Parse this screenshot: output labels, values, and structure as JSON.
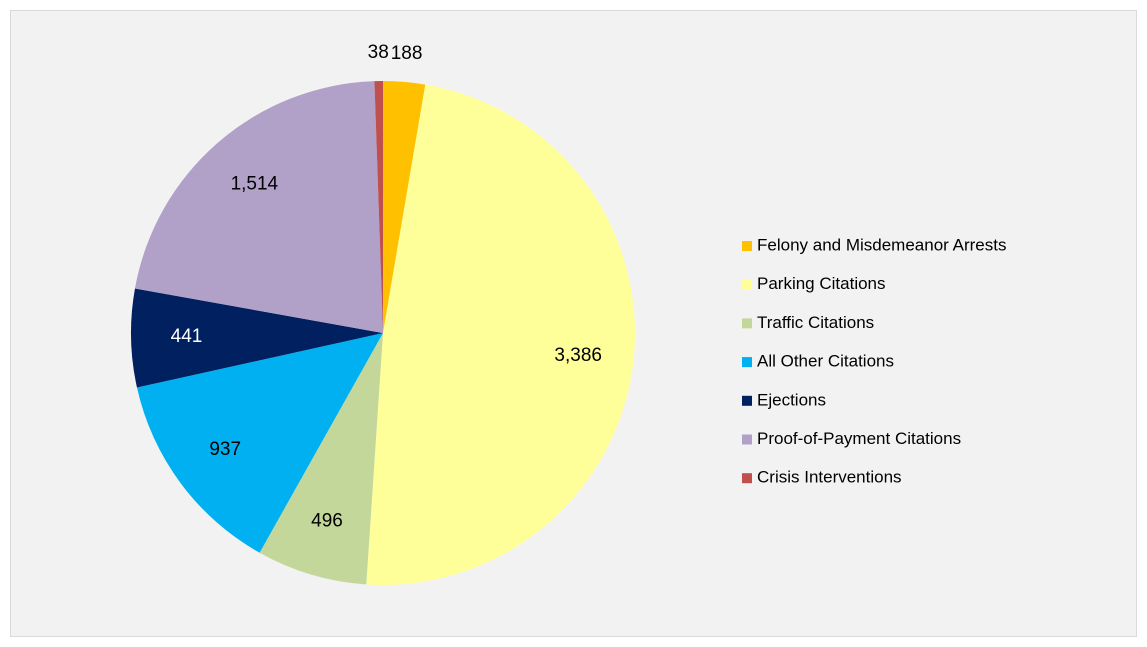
{
  "chart_data": {
    "type": "pie",
    "categories": [
      "Felony and Misdemeanor Arrests",
      "Parking Citations",
      "Traffic Citations",
      "All Other Citations",
      "Ejections",
      "Proof-of-Payment Citations",
      "Crisis Interventions"
    ],
    "values": [
      188,
      3386,
      496,
      937,
      441,
      1514,
      38
    ],
    "value_labels": [
      "188",
      "3,386",
      "496",
      "937",
      "441",
      "1,514",
      "38"
    ],
    "colors": [
      "#ffc000",
      "#ffff99",
      "#c4d79b",
      "#00b0f0",
      "#002060",
      "#b1a0c7",
      "#c0504d"
    ],
    "legend": "right"
  }
}
